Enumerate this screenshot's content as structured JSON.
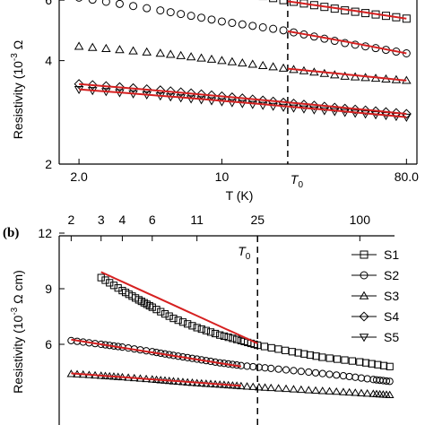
{
  "chart_data": [
    {
      "panel": "(a)",
      "type": "scatter",
      "xscale": "log",
      "yscale": "log",
      "xlim": [
        1.6,
        90
      ],
      "ylim": [
        2,
        6.3
      ],
      "xticks": [
        {
          "v": 2,
          "label": "2.0"
        },
        {
          "v": 10,
          "label": "10"
        },
        {
          "v": 80,
          "label": "80.0"
        }
      ],
      "yticks": [
        {
          "v": 2,
          "label": "2"
        },
        {
          "v": 4,
          "label": "4"
        },
        {
          "v": 6,
          "label": "6"
        }
      ],
      "xlabel": "T (K)",
      "ylabel": "Resistivity (10",
      "ylabel_sup": "-3",
      "ylabel_tail": "Ω",
      "t0": {
        "x": 21,
        "label": "T",
        "sub": "0"
      },
      "series": [
        {
          "name": "S1",
          "marker": "square",
          "x": [
            10,
            20,
            40,
            80
          ],
          "y": [
            6.5,
            6.0,
            5.6,
            5.3
          ]
        },
        {
          "name": "S2",
          "marker": "circle",
          "x": [
            2,
            5,
            10,
            20,
            40,
            80
          ],
          "y": [
            6.1,
            5.6,
            5.2,
            4.9,
            4.5,
            4.2
          ]
        },
        {
          "name": "S3",
          "marker": "triangle",
          "x": [
            2,
            5,
            10,
            20,
            40,
            80
          ],
          "y": [
            4.4,
            4.2,
            4.0,
            3.8,
            3.6,
            3.5
          ]
        },
        {
          "name": "S4",
          "marker": "diamond",
          "x": [
            2,
            5,
            10,
            20,
            40,
            80
          ],
          "y": [
            3.42,
            3.28,
            3.15,
            3.02,
            2.9,
            2.8
          ]
        },
        {
          "name": "S5",
          "marker": "triangle-down",
          "x": [
            2,
            5,
            10,
            20,
            40,
            80
          ],
          "y": [
            3.3,
            3.16,
            3.04,
            2.93,
            2.83,
            2.74
          ]
        }
      ],
      "fits": [
        {
          "series": "S1",
          "x": [
            21,
            80
          ],
          "y": [
            5.95,
            5.3
          ]
        },
        {
          "series": "S2",
          "x": [
            21,
            80
          ],
          "y": [
            4.87,
            4.2
          ]
        },
        {
          "series": "S3",
          "x": [
            21,
            80
          ],
          "y": [
            3.79,
            3.5
          ]
        },
        {
          "series": "S4",
          "x": [
            2,
            80
          ],
          "y": [
            3.42,
            2.8
          ]
        },
        {
          "series": "S5",
          "x": [
            2,
            80
          ],
          "y": [
            3.3,
            2.74
          ]
        }
      ]
    },
    {
      "panel": "(b)",
      "type": "scatter",
      "xscale": "log",
      "xlim": [
        1.7,
        160
      ],
      "ylim": [
        3.2,
        12
      ],
      "xticks": [
        {
          "v": 2,
          "label": "2"
        },
        {
          "v": 3,
          "label": "3"
        },
        {
          "v": 4,
          "label": "4"
        },
        {
          "v": 6,
          "label": "6"
        },
        {
          "v": 11,
          "label": "11"
        },
        {
          "v": 25,
          "label": "25"
        },
        {
          "v": 100,
          "label": "100"
        }
      ],
      "yticks": [
        {
          "v": 6,
          "label": "6"
        },
        {
          "v": 9,
          "label": "9"
        },
        {
          "v": 12,
          "label": "12"
        }
      ],
      "ylabel": "Resistivity (10",
      "ylabel_sup": "-3",
      "ylabel_tail": "Ω cm)",
      "t0": {
        "x": 25,
        "label": "T",
        "sub": "0"
      },
      "legend": {
        "placement": "right",
        "entries": [
          {
            "name": "S1",
            "marker": "square"
          },
          {
            "name": "S2",
            "marker": "circle"
          },
          {
            "name": "S3",
            "marker": "triangle"
          },
          {
            "name": "S4",
            "marker": "diamond"
          },
          {
            "name": "S5",
            "marker": "triangle-down"
          }
        ]
      },
      "series": [
        {
          "name": "S1",
          "marker": "square",
          "x": [
            3,
            4,
            5,
            6,
            8,
            11,
            15,
            20,
            25,
            40,
            60,
            100,
            150
          ],
          "y": [
            9.6,
            8.9,
            8.4,
            8.0,
            7.4,
            6.9,
            6.5,
            6.2,
            5.95,
            5.6,
            5.3,
            5.05,
            4.8
          ]
        },
        {
          "name": "S2",
          "marker": "circle",
          "x": [
            2,
            3,
            4,
            6,
            8,
            11,
            15,
            20,
            30,
            50,
            80,
            120,
            150
          ],
          "y": [
            6.2,
            6.0,
            5.85,
            5.6,
            5.4,
            5.2,
            5.0,
            4.85,
            4.7,
            4.5,
            4.3,
            4.1,
            4.0
          ]
        },
        {
          "name": "S3",
          "marker": "triangle",
          "x": [
            2,
            3,
            4,
            6,
            8,
            11,
            15,
            20,
            30,
            50,
            80,
            120,
            150
          ],
          "y": [
            4.4,
            4.3,
            4.22,
            4.1,
            4.0,
            3.9,
            3.82,
            3.74,
            3.64,
            3.52,
            3.42,
            3.32,
            3.26
          ]
        }
      ],
      "fits": [
        {
          "series": "S1",
          "x": [
            3,
            25
          ],
          "y": [
            9.9,
            6.05
          ]
        },
        {
          "series": "S2",
          "x": [
            2,
            20
          ],
          "y": [
            6.25,
            4.8
          ]
        },
        {
          "series": "S3",
          "x": [
            2,
            20
          ],
          "y": [
            4.43,
            3.76
          ]
        }
      ]
    }
  ],
  "labels": {
    "panel_b": "(b)"
  },
  "colors": {
    "fit": "#d62020",
    "axis": "#000000"
  }
}
